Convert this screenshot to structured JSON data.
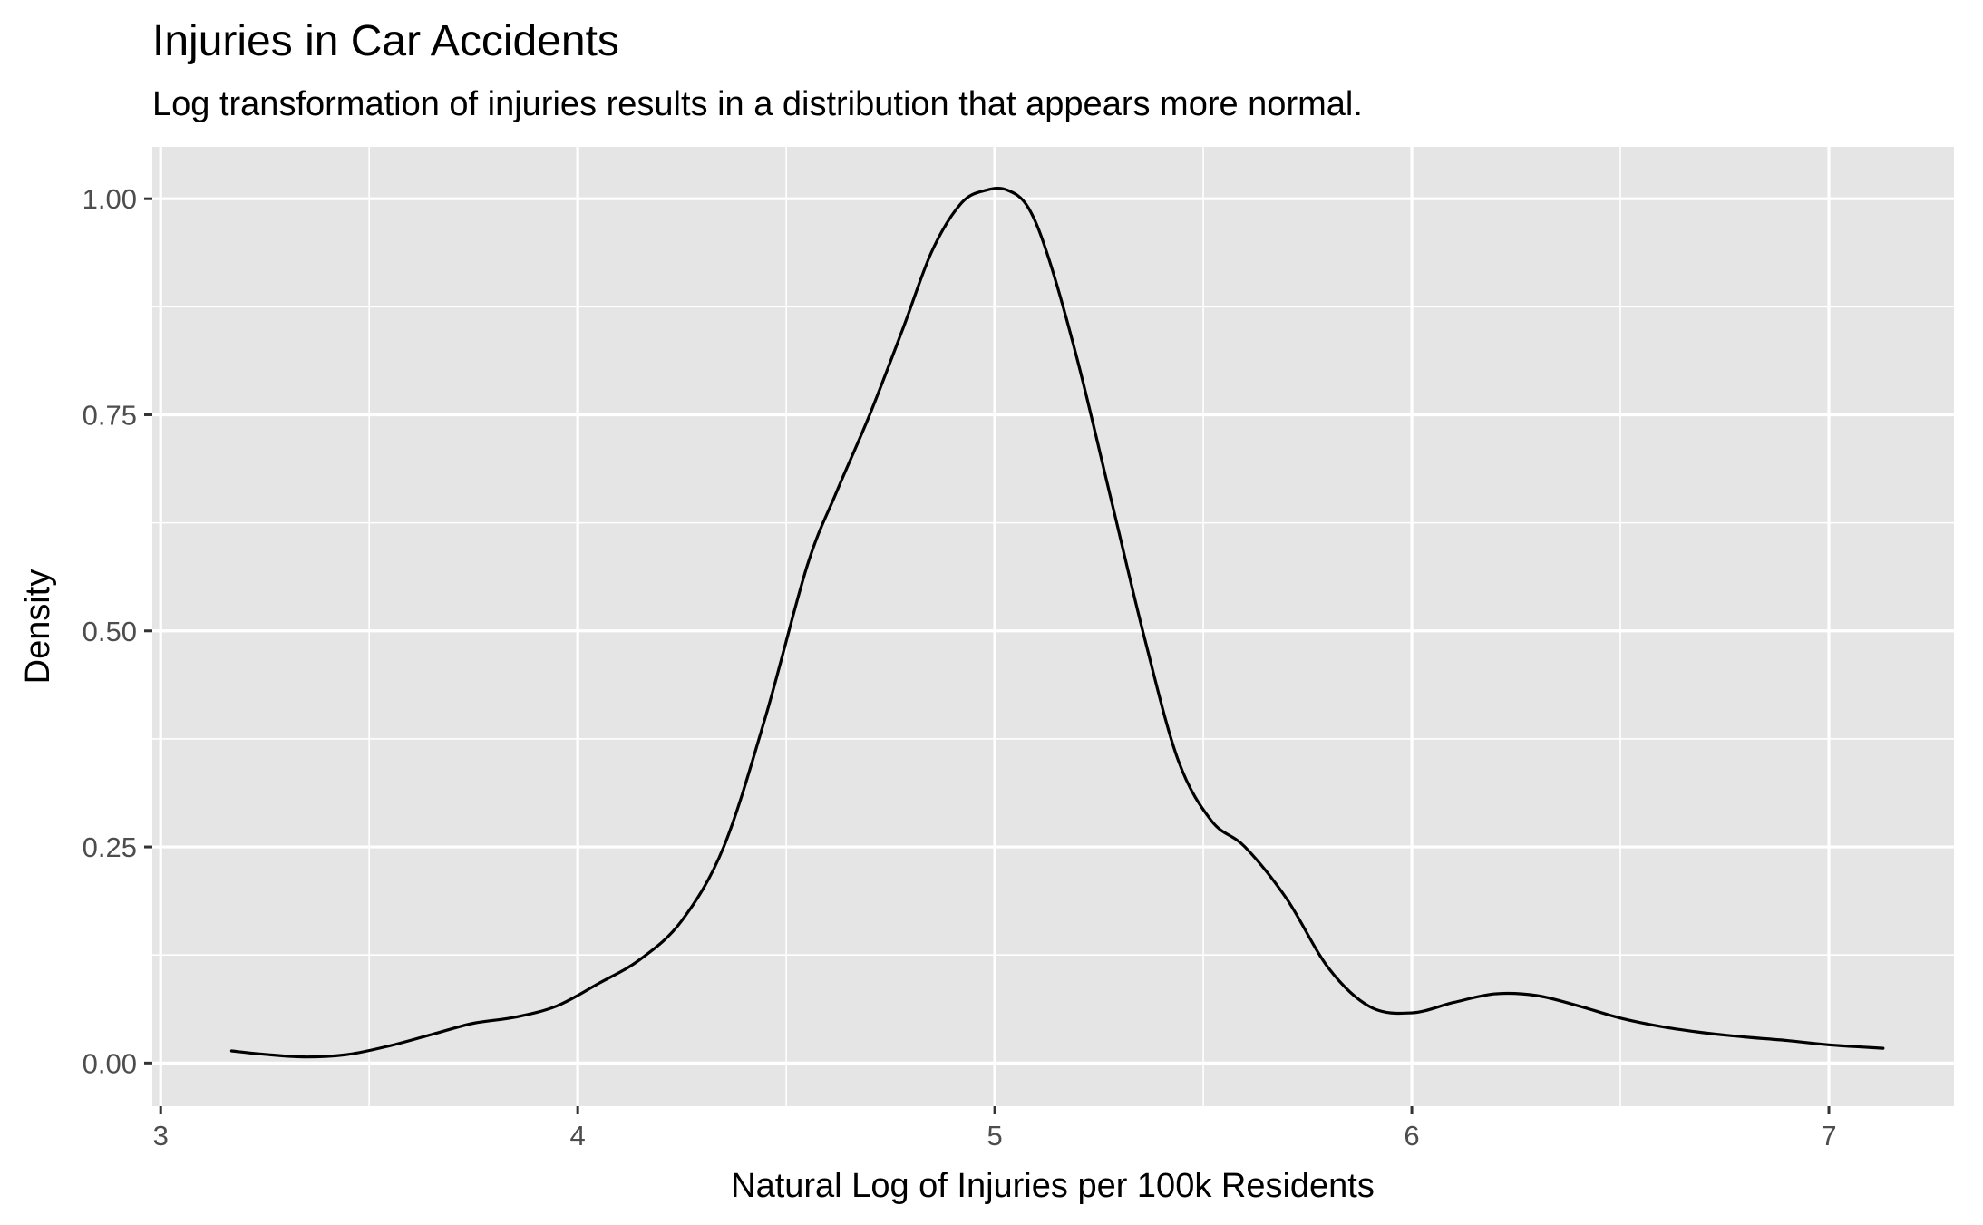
{
  "chart_data": {
    "type": "line",
    "title": "Injuries in Car Accidents",
    "subtitle": "Log transformation of injuries results in a distribution that appears more normal.",
    "xlabel": "Natural Log of Injuries per 100k Residents",
    "ylabel": "Density",
    "xlim": [
      2.98,
      7.3
    ],
    "ylim": [
      -0.05,
      1.06
    ],
    "x_ticks": [
      {
        "value": 3,
        "label": "3"
      },
      {
        "value": 4,
        "label": "4"
      },
      {
        "value": 5,
        "label": "5"
      },
      {
        "value": 6,
        "label": "6"
      },
      {
        "value": 7,
        "label": "7"
      }
    ],
    "y_ticks": [
      {
        "value": 0,
        "label": "0.00"
      },
      {
        "value": 0.25,
        "label": "0.25"
      },
      {
        "value": 0.5,
        "label": "0.50"
      },
      {
        "value": 0.75,
        "label": "0.75"
      },
      {
        "value": 1,
        "label": "1.00"
      }
    ],
    "x_minor": [
      3.5,
      4.5,
      5.5,
      6.5
    ],
    "y_minor": [
      0.125,
      0.375,
      0.625,
      0.875
    ],
    "grid": true,
    "colors": {
      "panel": "#e5e5e5",
      "grid": "#ffffff",
      "line": "#000000"
    },
    "series": [
      {
        "x": [
          3.17,
          3.25,
          3.35,
          3.45,
          3.55,
          3.65,
          3.75,
          3.85,
          3.95,
          4.05,
          4.15,
          4.25,
          4.35,
          4.45,
          4.55,
          4.62,
          4.7,
          4.78,
          4.85,
          4.92,
          4.98,
          5.03,
          5.08,
          5.13,
          5.2,
          5.28,
          5.36,
          5.44,
          5.52,
          5.6,
          5.7,
          5.8,
          5.9,
          6.0,
          6.1,
          6.2,
          6.3,
          6.4,
          6.5,
          6.6,
          6.7,
          6.8,
          6.9,
          7.0,
          7.13
        ],
        "y": [
          0.014,
          0.01,
          0.007,
          0.01,
          0.02,
          0.033,
          0.046,
          0.053,
          0.066,
          0.092,
          0.12,
          0.165,
          0.25,
          0.4,
          0.575,
          0.66,
          0.75,
          0.85,
          0.94,
          0.995,
          1.01,
          1.01,
          0.99,
          0.93,
          0.81,
          0.65,
          0.49,
          0.35,
          0.28,
          0.25,
          0.19,
          0.11,
          0.065,
          0.058,
          0.07,
          0.08,
          0.078,
          0.066,
          0.052,
          0.042,
          0.035,
          0.03,
          0.026,
          0.021,
          0.017
        ]
      }
    ]
  }
}
